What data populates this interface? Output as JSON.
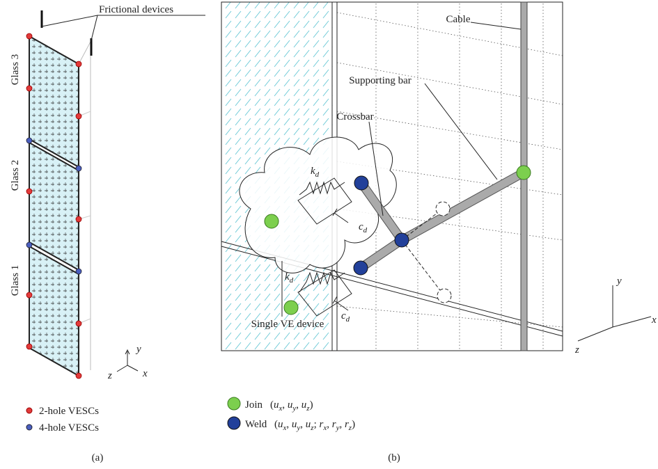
{
  "panel_a": {
    "callout": "Frictional devices",
    "glass_labels": [
      "Glass 3",
      "Glass 2",
      "Glass 1"
    ],
    "axes": {
      "y": "y",
      "z": "z",
      "x": "x"
    },
    "legend": [
      "2-hole VESCs",
      "4-hole VESCs"
    ],
    "caption": "(a)"
  },
  "panel_b": {
    "labels": {
      "cable": "Cable",
      "supporting_bar": "Supporting bar",
      "crossbar": "Crossbar",
      "device": "Single VE device"
    },
    "spring": [
      "k_d",
      "k_d"
    ],
    "damper": [
      "c_d",
      "c_d"
    ],
    "axes": {
      "y": "y",
      "z": "z",
      "x": "x"
    },
    "legend": {
      "join": {
        "label": "Join",
        "dofs": "(u_x, u_y, u_z)"
      },
      "weld": {
        "label": "Weld",
        "dofs": "(u_x, u_y, u_z; r_x, r_y, r_z)"
      }
    },
    "caption": "(b)"
  }
}
